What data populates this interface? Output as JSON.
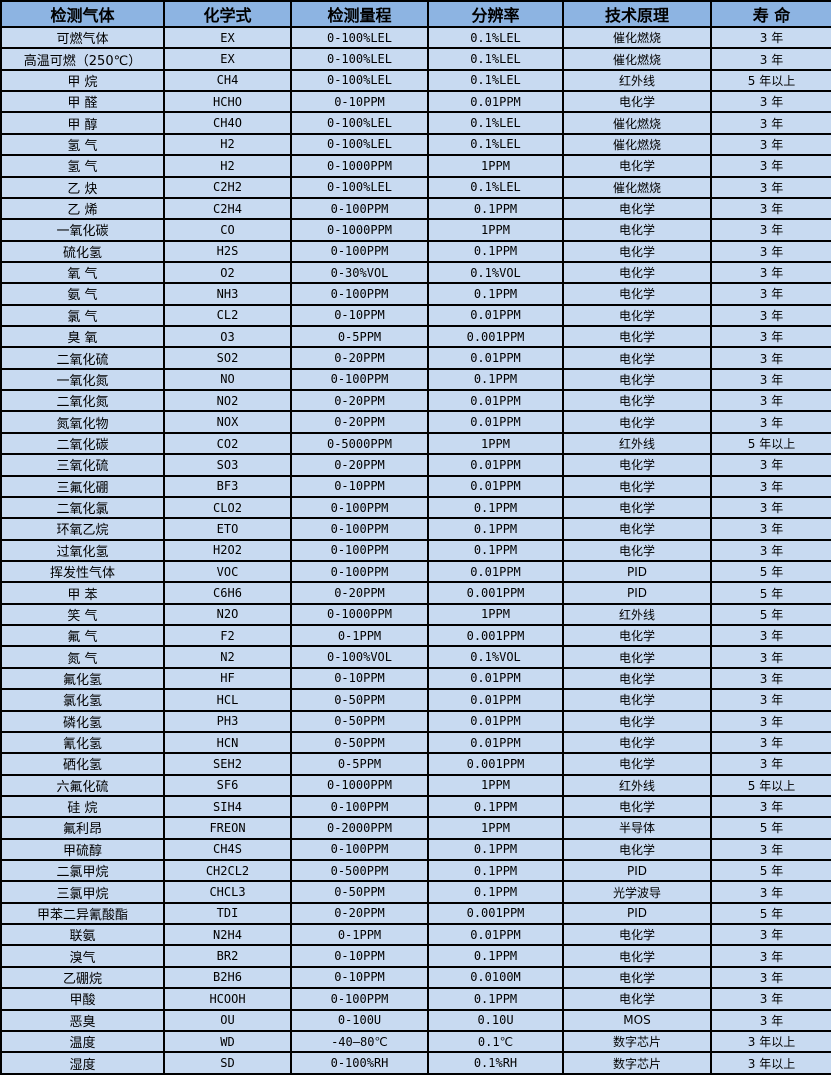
{
  "colors": {
    "header_bg": "#8DB4E2",
    "row_bg": "#C8DAF1",
    "border": "#000000",
    "text": "#000000"
  },
  "table": {
    "columns": [
      "检测气体",
      "化学式",
      "检测量程",
      "分辨率",
      "技术原理",
      "寿 命"
    ],
    "rows": [
      [
        "可燃气体",
        "EX",
        "0-100%LEL",
        "0.1%LEL",
        "催化燃烧",
        "3 年"
      ],
      [
        "高温可燃（250℃）",
        "EX",
        "0-100%LEL",
        "0.1%LEL",
        "催化燃烧",
        "3 年"
      ],
      [
        "甲 烷",
        "CH4",
        "0-100%LEL",
        "0.1%LEL",
        "红外线",
        "5 年以上"
      ],
      [
        "甲 醛",
        "HCHO",
        "0-10PPM",
        "0.01PPM",
        "电化学",
        "3 年"
      ],
      [
        "甲 醇",
        "CH4O",
        "0-100%LEL",
        "0.1%LEL",
        "催化燃烧",
        "3 年"
      ],
      [
        "氢 气",
        "H2",
        "0-100%LEL",
        "0.1%LEL",
        "催化燃烧",
        "3 年"
      ],
      [
        "氢 气",
        "H2",
        "0-1000PPM",
        "1PPM",
        "电化学",
        "3 年"
      ],
      [
        "乙 炔",
        "C2H2",
        "0-100%LEL",
        "0.1%LEL",
        "催化燃烧",
        "3 年"
      ],
      [
        "乙 烯",
        "C2H4",
        "0-100PPM",
        "0.1PPM",
        "电化学",
        "3 年"
      ],
      [
        "一氧化碳",
        "CO",
        "0-1000PPM",
        "1PPM",
        "电化学",
        "3 年"
      ],
      [
        "硫化氢",
        "H2S",
        "0-100PPM",
        "0.1PPM",
        "电化学",
        "3 年"
      ],
      [
        "氧 气",
        "O2",
        "0-30%VOL",
        "0.1%VOL",
        "电化学",
        "3 年"
      ],
      [
        "氨 气",
        "NH3",
        "0-100PPM",
        "0.1PPM",
        "电化学",
        "3 年"
      ],
      [
        "氯 气",
        "CL2",
        "0-10PPM",
        "0.01PPM",
        "电化学",
        "3 年"
      ],
      [
        "臭 氧",
        "O3",
        "0-5PPM",
        "0.001PPM",
        "电化学",
        "3 年"
      ],
      [
        "二氧化硫",
        "SO2",
        "0-20PPM",
        "0.01PPM",
        "电化学",
        "3 年"
      ],
      [
        "一氧化氮",
        "NO",
        "0-100PPM",
        "0.1PPM",
        "电化学",
        "3 年"
      ],
      [
        "二氧化氮",
        "NO2",
        "0-20PPM",
        "0.01PPM",
        "电化学",
        "3 年"
      ],
      [
        "氮氧化物",
        "NOX",
        "0-20PPM",
        "0.01PPM",
        "电化学",
        "3 年"
      ],
      [
        "二氧化碳",
        "CO2",
        "0-5000PPM",
        "1PPM",
        "红外线",
        "5 年以上"
      ],
      [
        "三氧化硫",
        "SO3",
        "0-20PPM",
        "0.01PPM",
        "电化学",
        "3 年"
      ],
      [
        "三氟化硼",
        "BF3",
        "0-10PPM",
        "0.01PPM",
        "电化学",
        "3 年"
      ],
      [
        "二氧化氯",
        "CLO2",
        "0-100PPM",
        "0.1PPM",
        "电化学",
        "3 年"
      ],
      [
        "环氧乙烷",
        "ETO",
        "0-100PPM",
        "0.1PPM",
        "电化学",
        "3 年"
      ],
      [
        "过氧化氢",
        "H2O2",
        "0-100PPM",
        "0.1PPM",
        "电化学",
        "3 年"
      ],
      [
        "挥发性气体",
        "VOC",
        "0-100PPM",
        "0.01PPM",
        "PID",
        "5 年"
      ],
      [
        "甲 苯",
        "C6H6",
        "0-20PPM",
        "0.001PPM",
        "PID",
        "5 年"
      ],
      [
        "笑 气",
        "N2O",
        "0-1000PPM",
        "1PPM",
        "红外线",
        "5 年"
      ],
      [
        "氟 气",
        "F2",
        "0-1PPM",
        "0.001PPM",
        "电化学",
        "3 年"
      ],
      [
        "氮 气",
        "N2",
        "0-100%VOL",
        "0.1%VOL",
        "电化学",
        "3 年"
      ],
      [
        "氟化氢",
        "HF",
        "0-10PPM",
        "0.01PPM",
        "电化学",
        "3 年"
      ],
      [
        "氯化氢",
        "HCL",
        "0-50PPM",
        "0.01PPM",
        "电化学",
        "3 年"
      ],
      [
        "磷化氢",
        "PH3",
        "0-50PPM",
        "0.01PPM",
        "电化学",
        "3 年"
      ],
      [
        "氰化氢",
        "HCN",
        "0-50PPM",
        "0.01PPM",
        "电化学",
        "3 年"
      ],
      [
        "硒化氢",
        "SEH2",
        "0-5PPM",
        "0.001PPM",
        "电化学",
        "3 年"
      ],
      [
        "六氟化硫",
        "SF6",
        "0-1000PPM",
        "1PPM",
        "红外线",
        "5 年以上"
      ],
      [
        "硅 烷",
        "SIH4",
        "0-100PPM",
        "0.1PPM",
        "电化学",
        "3 年"
      ],
      [
        "氟利昂",
        "FREON",
        "0-2000PPM",
        "1PPM",
        "半导体",
        "5 年"
      ],
      [
        "甲硫醇",
        "CH4S",
        "0-100PPM",
        "0.1PPM",
        "电化学",
        "3 年"
      ],
      [
        "二氯甲烷",
        "CH2CL2",
        "0-500PPM",
        "0.1PPM",
        "PID",
        "5 年"
      ],
      [
        "三氯甲烷",
        "CHCL3",
        "0-50PPM",
        "0.1PPM",
        "光学波导",
        "3 年"
      ],
      [
        "甲苯二异氰酸酯",
        "TDI",
        "0-20PPM",
        "0.001PPM",
        "PID",
        "5 年"
      ],
      [
        "联氨",
        "N2H4",
        "0-1PPM",
        "0.01PPM",
        "电化学",
        "3 年"
      ],
      [
        "溴气",
        "BR2",
        "0-10PPM",
        "0.1PPM",
        "电化学",
        "3 年"
      ],
      [
        "乙硼烷",
        "B2H6",
        "0-10PPM",
        "0.0100M",
        "电化学",
        "3 年"
      ],
      [
        "甲酸",
        "HCOOH",
        "0-100PPM",
        "0.1PPM",
        "电化学",
        "3 年"
      ],
      [
        "恶臭",
        "OU",
        "0-100U",
        "0.10U",
        "MOS",
        "3 年"
      ],
      [
        "温度",
        "WD",
        "-40—80℃",
        "0.1℃",
        "数字芯片",
        "3 年以上"
      ],
      [
        "湿度",
        "SD",
        "0-100%RH",
        "0.1%RH",
        "数字芯片",
        "3 年以上"
      ]
    ]
  }
}
